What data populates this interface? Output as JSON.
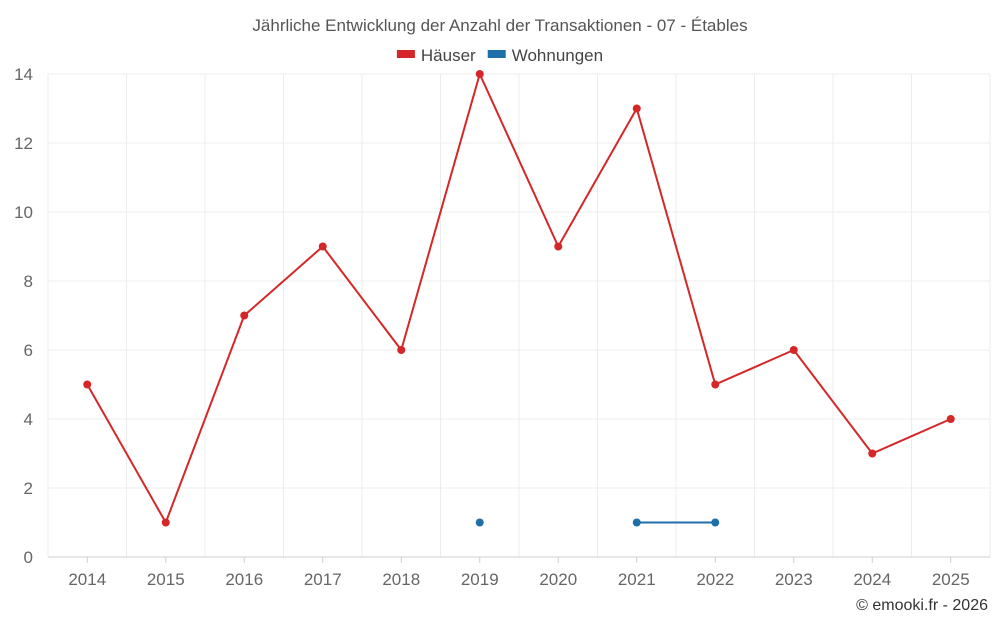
{
  "chart_data": {
    "type": "line",
    "title": "Jährliche Entwicklung der Anzahl der Transaktionen - 07 - Étables",
    "xlabel": "",
    "ylabel": "",
    "categories": [
      "2014",
      "2015",
      "2016",
      "2017",
      "2018",
      "2019",
      "2020",
      "2021",
      "2022",
      "2023",
      "2024",
      "2025"
    ],
    "ylim": [
      0,
      14
    ],
    "yticks": [
      0,
      2,
      4,
      6,
      8,
      10,
      12,
      14
    ],
    "grid": true,
    "legend_position": "top-center",
    "series": [
      {
        "name": "Häuser",
        "color": "#d62728",
        "values": [
          5,
          1,
          7,
          9,
          6,
          14,
          9,
          13,
          5,
          6,
          3,
          4
        ]
      },
      {
        "name": "Wohnungen",
        "color": "#1f6fa8",
        "values": [
          null,
          null,
          null,
          null,
          null,
          1,
          null,
          1,
          1,
          null,
          null,
          null
        ]
      }
    ]
  },
  "credit": "© emooki.fr - 2026"
}
